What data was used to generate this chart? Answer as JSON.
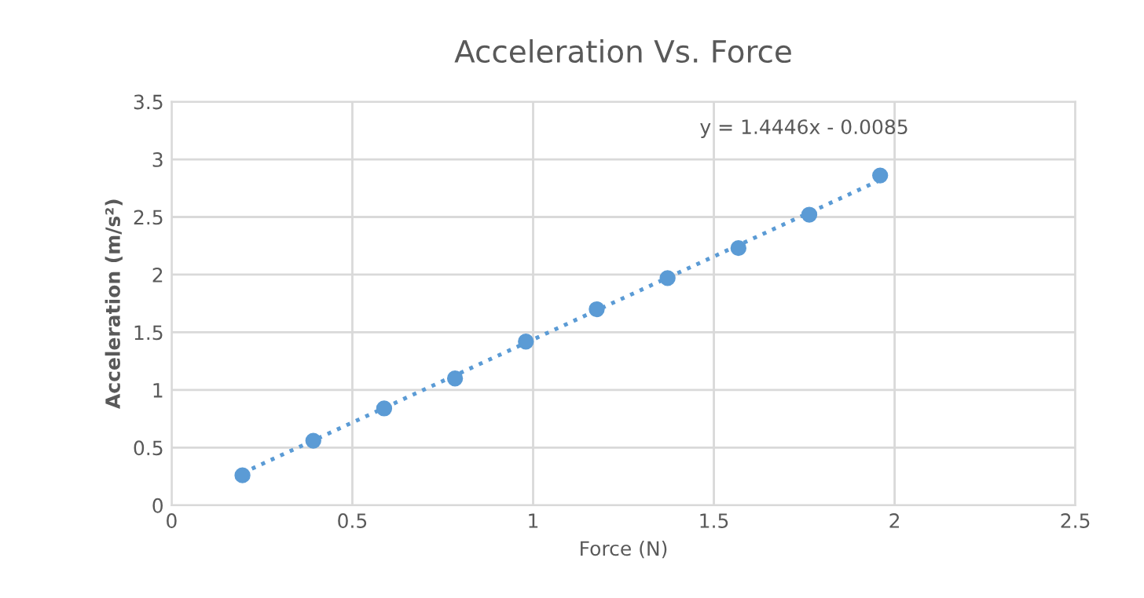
{
  "chart_data": {
    "type": "scatter",
    "title": "Acceleration Vs. Force",
    "xlabel": "Force (N)",
    "ylabel": "Acceleration (m/s²)",
    "xlim": [
      0,
      2.5
    ],
    "xticks": [
      0,
      0.5,
      1,
      1.5,
      2,
      2.5
    ],
    "ylim": [
      0,
      3.5
    ],
    "yticks": [
      0,
      0.5,
      1,
      1.5,
      2,
      2.5,
      3,
      3.5
    ],
    "grid": true,
    "series": [
      {
        "marker": "circle",
        "color": "#5b9bd5",
        "x": [
          0.196,
          0.392,
          0.588,
          0.784,
          0.98,
          1.176,
          1.372,
          1.568,
          1.764,
          1.96
        ],
        "values": [
          0.26,
          0.56,
          0.84,
          1.1,
          1.42,
          1.7,
          1.97,
          2.23,
          2.52,
          2.86
        ]
      },
      {
        "type": "line",
        "marker": "none",
        "color": "#5b9bd5",
        "line_style": "dotted",
        "x": [
          0.196,
          1.96
        ],
        "values": [
          0.28,
          2.82
        ]
      }
    ],
    "annotations": [
      "y = 1.4446x - 0.0085"
    ]
  }
}
